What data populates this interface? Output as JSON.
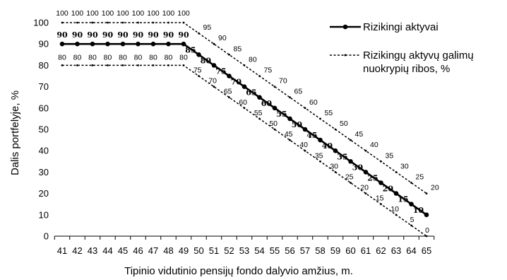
{
  "chart_data": {
    "type": "line",
    "xlabel": "Tipinio vidutinio pensijų fondo dalyvio amžius, m.",
    "ylabel": "Dalis portfelyje, %",
    "x": [
      41,
      42,
      43,
      44,
      45,
      46,
      47,
      48,
      49,
      50,
      51,
      52,
      53,
      54,
      55,
      56,
      57,
      58,
      59,
      60,
      61,
      62,
      63,
      64,
      65
    ],
    "ylim": [
      0,
      100
    ],
    "yticks": [
      0,
      10,
      20,
      30,
      40,
      50,
      60,
      70,
      80,
      90,
      100
    ],
    "grid": false,
    "legend_position": "top-right",
    "series": [
      {
        "name": "Rizikingi aktyvai",
        "style": "solid",
        "color": "#000000",
        "values": [
          90,
          90,
          90,
          90,
          90,
          90,
          90,
          90,
          90,
          85,
          80,
          75,
          70,
          65,
          60,
          55,
          50,
          45,
          40,
          35,
          30,
          25,
          20,
          15,
          10
        ]
      },
      {
        "name": "Rizikingų aktyvų galimų nuokrypių ribos, %",
        "style": "dashed",
        "color": "#000000",
        "values": [
          100,
          100,
          100,
          100,
          100,
          100,
          100,
          100,
          100,
          95,
          90,
          85,
          80,
          75,
          70,
          65,
          60,
          55,
          50,
          45,
          40,
          35,
          30,
          25,
          20
        ]
      },
      {
        "name": "",
        "style": "dashed",
        "color": "#000000",
        "values": [
          80,
          80,
          80,
          80,
          80,
          80,
          80,
          80,
          80,
          75,
          70,
          65,
          60,
          55,
          50,
          45,
          40,
          35,
          30,
          25,
          20,
          15,
          10,
          5,
          0
        ]
      }
    ]
  },
  "legend": {
    "line1": "Rizikingi aktyvai",
    "line2a": "Rizikingų aktyvų galimų",
    "line2b": "nuokrypių ribos, %"
  }
}
